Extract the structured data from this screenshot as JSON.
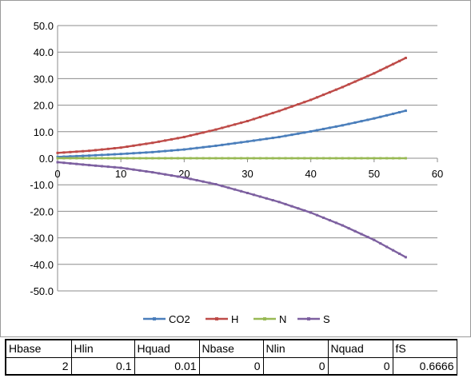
{
  "chart_data": {
    "type": "line",
    "title": "",
    "xlabel": "",
    "ylabel": "",
    "xlim": [
      0,
      60
    ],
    "ylim": [
      -50,
      50
    ],
    "x_ticks": [
      "0",
      "10",
      "20",
      "30",
      "40",
      "50",
      "60"
    ],
    "y_ticks": [
      "50.0",
      "40.0",
      "30.0",
      "20.0",
      "10.0",
      "0.0",
      "-10.0",
      "-20.0",
      "-30.0",
      "-40.0",
      "-50.0"
    ],
    "grid": "horizontal",
    "legend_position": "bottom",
    "x": [
      0,
      5,
      10,
      15,
      20,
      25,
      30,
      35,
      40,
      45,
      50,
      55
    ],
    "series": [
      {
        "name": "CO2",
        "color": "#4a7ebb",
        "values": [
          0.5,
          1.0,
          1.6,
          2.3,
          3.3,
          4.7,
          6.3,
          8.0,
          10.1,
          12.4,
          15.0,
          17.9
        ]
      },
      {
        "name": "H",
        "color": "#be4b48",
        "values": [
          2.0,
          2.8,
          4.0,
          5.8,
          8.0,
          10.8,
          14.0,
          17.8,
          22.0,
          26.8,
          32.0,
          37.8
        ]
      },
      {
        "name": "N",
        "color": "#98b954",
        "values": [
          0,
          0,
          0,
          0,
          0,
          0,
          0,
          0,
          0,
          0,
          0,
          0
        ]
      },
      {
        "name": "S",
        "color": "#7d60a0",
        "values": [
          -1.5,
          -2.6,
          -3.6,
          -5.3,
          -7.3,
          -9.8,
          -13.1,
          -16.5,
          -20.5,
          -25.3,
          -30.8,
          -37.3
        ]
      }
    ]
  },
  "params": {
    "headers": [
      "Hbase",
      "Hlin",
      "Hquad",
      "Nbase",
      "Nlin",
      "Nquad",
      "fS"
    ],
    "values": [
      "2",
      "0.1",
      "0.01",
      "0",
      "0",
      "0",
      "0.6666"
    ]
  }
}
